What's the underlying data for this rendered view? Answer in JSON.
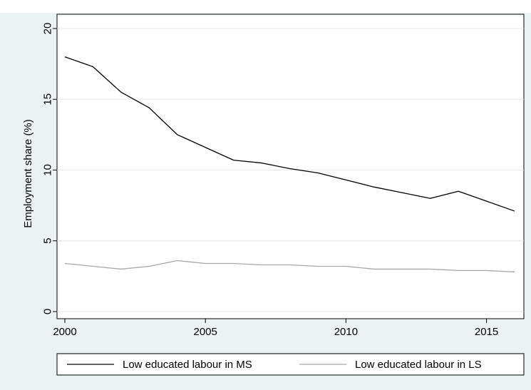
{
  "chart_data": {
    "type": "line",
    "title": "",
    "xlabel": "",
    "ylabel": "Employment share (%)",
    "xlim": [
      2000,
      2016
    ],
    "ylim": [
      0,
      20
    ],
    "x_ticks": [
      "2000",
      "2005",
      "2010",
      "2015"
    ],
    "y_ticks": [
      "0",
      "5",
      "10",
      "15",
      "20"
    ],
    "grid": true,
    "legend_position": "bottom",
    "x": [
      2000,
      2001,
      2002,
      2003,
      2004,
      2005,
      2006,
      2007,
      2008,
      2009,
      2010,
      2011,
      2012,
      2013,
      2014,
      2015,
      2016
    ],
    "series": [
      {
        "name": "Low educated labour in MS",
        "color": "#000000",
        "values": [
          18.0,
          17.3,
          15.5,
          14.4,
          12.5,
          11.6,
          10.7,
          10.5,
          10.1,
          9.8,
          9.3,
          8.8,
          8.4,
          8.0,
          8.5,
          7.8,
          7.1
        ]
      },
      {
        "name": "Low educated labour in LS",
        "color": "#a8a8a8",
        "values": [
          3.4,
          3.2,
          3.0,
          3.2,
          3.6,
          3.4,
          3.4,
          3.3,
          3.3,
          3.2,
          3.2,
          3.0,
          3.0,
          3.0,
          2.9,
          2.9,
          2.8
        ]
      }
    ]
  }
}
